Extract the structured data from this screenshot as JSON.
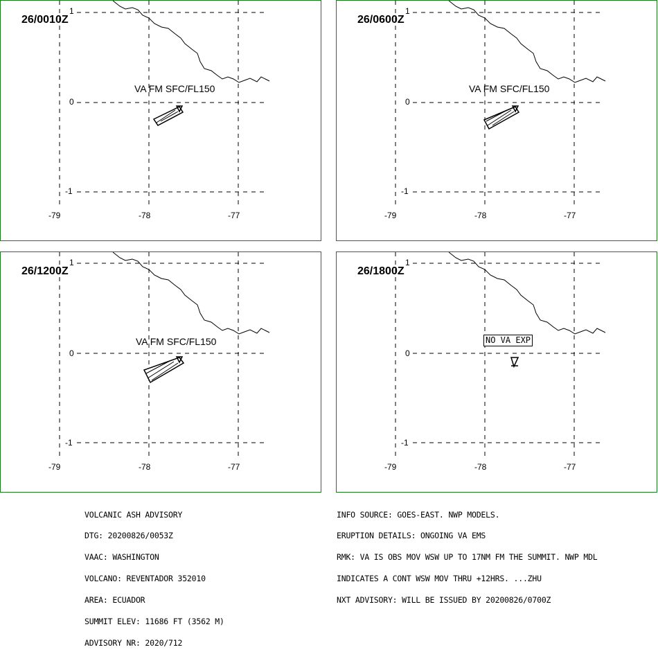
{
  "panels": [
    {
      "time": "26/0010Z",
      "label": "VA FM SFC/FL150",
      "plume": "small"
    },
    {
      "time": "26/0600Z",
      "label": "VA FM SFC/FL150",
      "plume": "small"
    },
    {
      "time": "26/1200Z",
      "label": "VA FM SFC/FL150",
      "plume": "large"
    },
    {
      "time": "26/1800Z",
      "label": "NO VA EXP",
      "plume": "none"
    }
  ],
  "lat_ticks": [
    "1",
    "0",
    "-1"
  ],
  "lon_ticks": [
    "-79",
    "-78",
    "-77"
  ],
  "advisory_left": [
    "VOLCANIC ASH ADVISORY",
    "DTG: 20200826/0053Z",
    "VAAC: WASHINGTON",
    "VOLCANO: REVENTADOR 352010",
    "AREA: ECUADOR",
    "SUMMIT ELEV: 11686 FT (3562 M)",
    "ADVISORY NR: 2020/712"
  ],
  "advisory_right": [
    "INFO SOURCE: GOES-EAST. NWP MODELS.",
    "ERUPTION DETAILS: ONGOING VA EMS",
    "RMK: VA IS OBS MOV WSW UP TO 17NM FM THE SUMMIT. NWP MDL",
    "INDICATES A CONT WSW MOV THRU +12HRS. ...ZHU",
    "NXT ADVISORY: WILL BE ISSUED BY 20200826/0700Z"
  ]
}
